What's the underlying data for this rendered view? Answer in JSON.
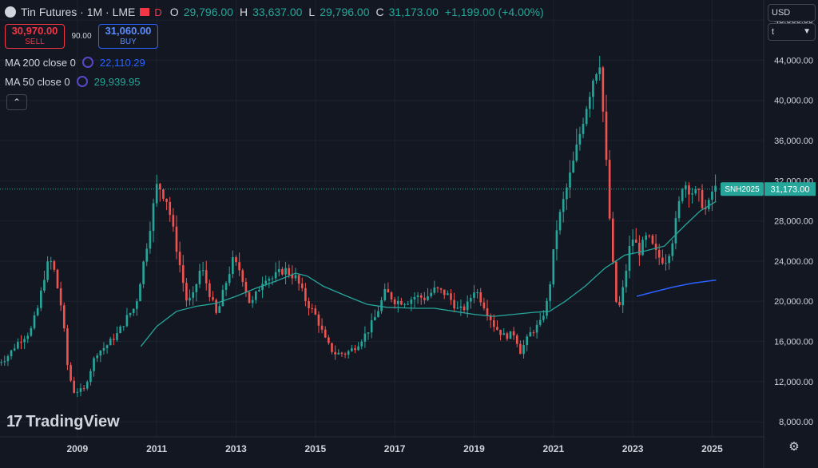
{
  "header": {
    "title": "Tin Futures · 1M · LME",
    "badge": "D",
    "ohlc": [
      {
        "label": "O",
        "value": "29,796.00"
      },
      {
        "label": "H",
        "value": "33,637.00"
      },
      {
        "label": "L",
        "value": "29,796.00"
      },
      {
        "label": "C",
        "value": "31,173.00"
      }
    ],
    "change": "+1,199.00 (+4.00%)"
  },
  "trade": {
    "sell_price": "30,970.00",
    "sell_label": "SELL",
    "spread": "90.00",
    "buy_price": "31,060.00",
    "buy_label": "BUY"
  },
  "indicators": [
    {
      "label": "MA 200 close 0",
      "value": "22,110.29",
      "color": "#2962ff"
    },
    {
      "label": "MA 50 close 0",
      "value": "29,939.95",
      "color": "#26a69a"
    }
  ],
  "price_scale": {
    "currency": "USD",
    "unit": "t"
  },
  "last_price": {
    "symbol": "SNH2025",
    "value": "31,173.00"
  },
  "watermark": "TradingView",
  "colors": {
    "up": "#26a69a",
    "down": "#ef5350",
    "ma50": "#26a69a",
    "ma200": "#2962ff",
    "background": "#131722"
  },
  "chart_data": {
    "type": "candlestick",
    "interval": "1M",
    "ylim": [
      6500,
      50000
    ],
    "y_ticks": [
      8000,
      12000,
      16000,
      20000,
      24000,
      28000,
      32000,
      36000,
      40000,
      44000,
      48000
    ],
    "y_tick_labels": [
      "8,000.00",
      "12,000.00",
      "16,000.00",
      "20,000.00",
      "24,000.00",
      "28,000.00",
      "32,000.00",
      "36,000.00",
      "40,000.00",
      "44,000.00",
      "48,000.00"
    ],
    "x_range": [
      2007.05,
      2026.3
    ],
    "x_ticks": [
      2009,
      2011,
      2013,
      2015,
      2017,
      2019,
      2021,
      2023,
      2025
    ],
    "x_tick_labels": [
      "2009",
      "2011",
      "2013",
      "2015",
      "2017",
      "2019",
      "2021",
      "2023",
      "2025"
    ],
    "anchors": [
      [
        2007.0,
        13700
      ],
      [
        2007.3,
        14400
      ],
      [
        2007.6,
        16000
      ],
      [
        2007.9,
        17000
      ],
      [
        2008.1,
        19500
      ],
      [
        2008.3,
        23500
      ],
      [
        2008.45,
        24000
      ],
      [
        2008.7,
        19000
      ],
      [
        2008.85,
        13000
      ],
      [
        2009.0,
        11000
      ],
      [
        2009.25,
        11200
      ],
      [
        2009.55,
        14800
      ],
      [
        2009.8,
        15500
      ],
      [
        2010.1,
        16800
      ],
      [
        2010.35,
        18500
      ],
      [
        2010.55,
        19500
      ],
      [
        2010.85,
        26000
      ],
      [
        2011.1,
        31800
      ],
      [
        2011.35,
        30000
      ],
      [
        2011.55,
        26000
      ],
      [
        2011.85,
        19800
      ],
      [
        2012.0,
        20500
      ],
      [
        2012.2,
        23500
      ],
      [
        2012.4,
        21000
      ],
      [
        2012.6,
        18500
      ],
      [
        2012.8,
        21500
      ],
      [
        2013.0,
        24000
      ],
      [
        2013.2,
        23000
      ],
      [
        2013.45,
        19500
      ],
      [
        2013.8,
        22500
      ],
      [
        2014.0,
        22300
      ],
      [
        2014.3,
        23200
      ],
      [
        2014.6,
        22300
      ],
      [
        2014.85,
        20000
      ],
      [
        2015.1,
        18500
      ],
      [
        2015.35,
        16000
      ],
      [
        2015.55,
        14800
      ],
      [
        2015.85,
        14800
      ],
      [
        2016.1,
        15500
      ],
      [
        2016.4,
        17000
      ],
      [
        2016.6,
        18500
      ],
      [
        2016.85,
        21000
      ],
      [
        2017.1,
        20000
      ],
      [
        2017.4,
        20000
      ],
      [
        2017.6,
        20500
      ],
      [
        2017.85,
        20300
      ],
      [
        2018.1,
        21200
      ],
      [
        2018.4,
        20700
      ],
      [
        2018.7,
        19000
      ],
      [
        2018.9,
        19500
      ],
      [
        2019.1,
        21300
      ],
      [
        2019.35,
        19500
      ],
      [
        2019.6,
        17500
      ],
      [
        2019.85,
        16500
      ],
      [
        2020.1,
        16800
      ],
      [
        2020.25,
        15000
      ],
      [
        2020.5,
        16800
      ],
      [
        2020.75,
        17800
      ],
      [
        2020.95,
        20200
      ],
      [
        2021.15,
        27000
      ],
      [
        2021.4,
        31000
      ],
      [
        2021.6,
        34000
      ],
      [
        2021.85,
        38500
      ],
      [
        2022.1,
        42500
      ],
      [
        2022.25,
        44000
      ],
      [
        2022.38,
        36000
      ],
      [
        2022.55,
        25000
      ],
      [
        2022.7,
        18500
      ],
      [
        2022.85,
        21500
      ],
      [
        2023.05,
        26500
      ],
      [
        2023.25,
        25000
      ],
      [
        2023.45,
        26500
      ],
      [
        2023.7,
        24500
      ],
      [
        2023.9,
        24000
      ],
      [
        2024.05,
        25500
      ],
      [
        2024.2,
        28500
      ],
      [
        2024.35,
        32000
      ],
      [
        2024.55,
        31000
      ],
      [
        2024.75,
        30500
      ],
      [
        2024.95,
        28800
      ],
      [
        2025.1,
        31173
      ]
    ],
    "ma50": [
      [
        2010.6,
        15500
      ],
      [
        2011.0,
        17500
      ],
      [
        2011.5,
        19000
      ],
      [
        2012.0,
        19500
      ],
      [
        2012.5,
        19800
      ],
      [
        2013.0,
        20500
      ],
      [
        2013.5,
        21300
      ],
      [
        2014.0,
        22000
      ],
      [
        2014.5,
        22800
      ],
      [
        2014.8,
        22500
      ],
      [
        2015.2,
        21500
      ],
      [
        2015.8,
        20500
      ],
      [
        2016.3,
        19700
      ],
      [
        2016.8,
        19400
      ],
      [
        2017.5,
        19300
      ],
      [
        2018.0,
        19300
      ],
      [
        2018.5,
        19000
      ],
      [
        2019.0,
        18700
      ],
      [
        2019.5,
        18500
      ],
      [
        2020.0,
        18700
      ],
      [
        2020.5,
        18900
      ],
      [
        2020.9,
        19000
      ],
      [
        2021.3,
        20000
      ],
      [
        2021.8,
        21500
      ],
      [
        2022.3,
        23300
      ],
      [
        2022.8,
        24600
      ],
      [
        2023.3,
        25000
      ],
      [
        2023.8,
        25500
      ],
      [
        2024.3,
        27500
      ],
      [
        2024.7,
        29000
      ],
      [
        2025.1,
        29940
      ]
    ],
    "ma200": [
      [
        2023.1,
        20500
      ],
      [
        2023.5,
        20900
      ],
      [
        2024.0,
        21400
      ],
      [
        2024.5,
        21800
      ],
      [
        2025.1,
        22110
      ]
    ]
  }
}
